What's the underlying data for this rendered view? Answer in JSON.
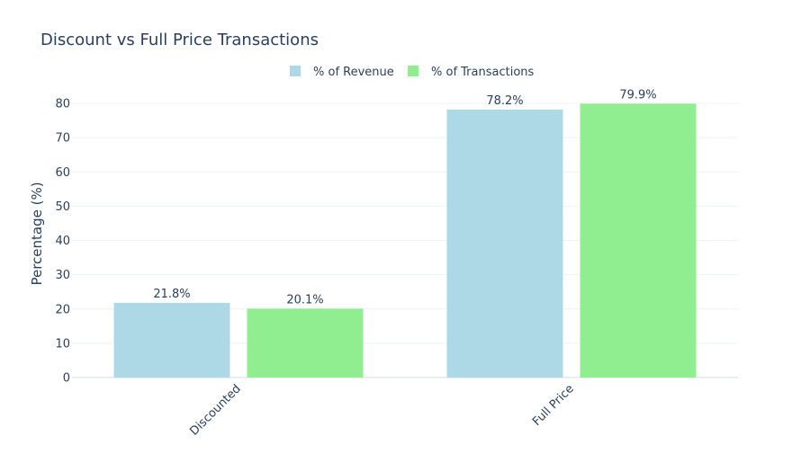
{
  "chart_data": {
    "type": "bar",
    "title": "Discount vs Full Price Transactions",
    "xlabel": "",
    "ylabel": "Percentage (%)",
    "categories": [
      "Discounted",
      "Full Price"
    ],
    "series": [
      {
        "name": "% of Revenue",
        "values": [
          21.8,
          78.2
        ],
        "labels": [
          "21.8%",
          "78.2%"
        ],
        "color": "#add8e6"
      },
      {
        "name": "% of Transactions",
        "values": [
          20.1,
          79.9
        ],
        "labels": [
          "20.1%",
          "79.9%"
        ],
        "color": "#90ee90"
      }
    ],
    "ylim": [
      0,
      80
    ],
    "yticks": [
      0,
      10,
      20,
      30,
      40,
      50,
      60,
      70,
      80
    ],
    "grid": true,
    "legend_position": "top-center",
    "colors": {
      "text": "#2a3f5f",
      "grid": "#eef2f6",
      "axis_line": "#e2e8f0"
    }
  }
}
